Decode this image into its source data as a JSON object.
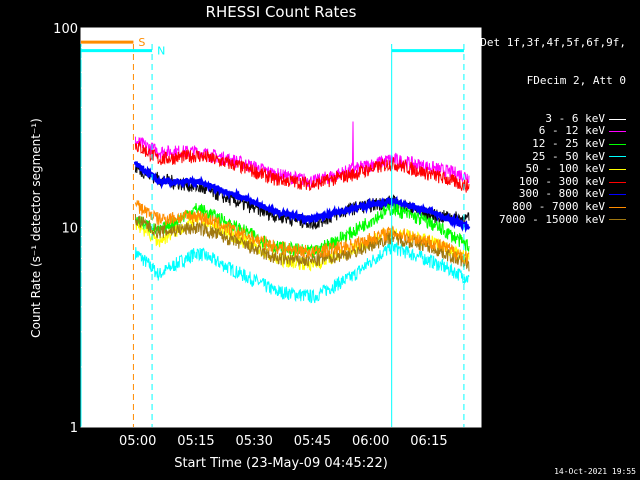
{
  "chart_data": {
    "type": "line",
    "title": "RHESSI Count Rates",
    "xlabel": "Start Time (23-May-09 04:45:22)",
    "ylabel": "Count Rate (s⁻¹ detector segment⁻¹)",
    "yscale": "log",
    "ylim": [
      1,
      100
    ],
    "xlim_minutes": [
      0,
      103
    ],
    "y_ticks": [
      "1",
      "10",
      "100"
    ],
    "x_ticks": [
      {
        "label": "05:00",
        "t": 14.6
      },
      {
        "label": "05:15",
        "t": 29.6
      },
      {
        "label": "05:30",
        "t": 44.6
      },
      {
        "label": "05:45",
        "t": 59.6
      },
      {
        "label": "06:00",
        "t": 74.6
      },
      {
        "label": "06:15",
        "t": 89.6
      }
    ],
    "legend_header": [
      "Det 1f,3f,4f,5f,6f,9f,",
      "FDecim 2, Att 0"
    ],
    "series": [
      {
        "name": "3 - 6 keV",
        "color": "#000000",
        "t": [
          14,
          20,
          30,
          40,
          50,
          60,
          70,
          80,
          90,
          100
        ],
        "values": [
          20,
          17.5,
          16,
          13.5,
          11.5,
          10.5,
          12.5,
          13.5,
          11.5,
          11
        ]
      },
      {
        "name": "6 - 12 keV",
        "color": "#ff00ff",
        "t": [
          14,
          20,
          30,
          40,
          50,
          60,
          70,
          80,
          90,
          100
        ],
        "values": [
          27,
          24,
          24,
          21.5,
          18.5,
          17,
          19.5,
          22,
          20,
          18
        ]
      },
      {
        "name": "12 - 25 keV",
        "color": "#00ff00",
        "t": [
          14,
          20,
          30,
          40,
          50,
          60,
          70,
          80,
          90,
          100
        ],
        "values": [
          11,
          9.5,
          12.5,
          10,
          8,
          7.5,
          9.5,
          12.5,
          10.5,
          8
        ]
      },
      {
        "name": "25 - 50 keV",
        "color": "#00ffff",
        "t": [
          14,
          20,
          30,
          40,
          50,
          60,
          70,
          80,
          90,
          100
        ],
        "values": [
          7.5,
          5.8,
          7.5,
          6,
          4.8,
          4.5,
          5.7,
          8,
          6.8,
          5.5
        ]
      },
      {
        "name": "50 - 100 keV",
        "color": "#ffff00",
        "t": [
          14,
          20,
          30,
          40,
          50,
          60,
          70,
          80,
          90,
          100
        ],
        "values": [
          10.5,
          8.5,
          11,
          9,
          7,
          6.5,
          7.8,
          9.5,
          8.5,
          7
        ]
      },
      {
        "name": "100 - 300 keV",
        "color": "#ff0000",
        "t": [
          14,
          20,
          30,
          40,
          50,
          60,
          70,
          80,
          90,
          100
        ],
        "values": [
          26,
          22,
          23,
          20.5,
          17.5,
          16.5,
          18.5,
          21,
          18.5,
          16
        ]
      },
      {
        "name": "300 - 800 keV",
        "color": "#0000ff",
        "t": [
          14,
          20,
          30,
          40,
          50,
          60,
          70,
          80,
          90,
          100
        ],
        "values": [
          21,
          17,
          17,
          14.5,
          12,
          11,
          12.5,
          13.5,
          12,
          10
        ]
      },
      {
        "name": "800 - 7000 keV",
        "color": "#ff8c00",
        "t": [
          14,
          20,
          30,
          40,
          50,
          60,
          70,
          80,
          90,
          100
        ],
        "values": [
          13,
          11,
          11.5,
          9.5,
          8,
          7.5,
          8.2,
          9.5,
          8.5,
          7
        ]
      },
      {
        "name": "7000 - 15000 keV",
        "color": "#a07810",
        "t": [
          14,
          20,
          30,
          40,
          50,
          60,
          70,
          80,
          90,
          100
        ],
        "values": [
          11,
          9.5,
          10,
          8.5,
          7,
          6.8,
          7.5,
          9,
          8,
          6.5
        ]
      }
    ],
    "annotations": [
      {
        "text": "S",
        "color": "#ff8c00",
        "level": 85,
        "t_start": 0,
        "t_end": 13.5
      },
      {
        "text": "N",
        "color": "#00ffff",
        "level": 77,
        "t_start": 0,
        "t_end": 18.3
      },
      {
        "text": "",
        "color": "#00ffff",
        "level": 77,
        "t_start": 80,
        "t_end": 98.6
      }
    ],
    "vlines": [
      {
        "t": 0,
        "color": "#00ffff",
        "style": "solid"
      },
      {
        "t": 13.5,
        "color": "#ff8c00",
        "style": "dashed"
      },
      {
        "t": 18.3,
        "color": "#00ffff",
        "style": "dashed"
      },
      {
        "t": 80,
        "color": "#00ffff",
        "style": "solid"
      },
      {
        "t": 98.6,
        "color": "#00ffff",
        "style": "dashed"
      }
    ],
    "spike": {
      "series": "6 - 12 keV",
      "t": 70,
      "value": 34
    }
  },
  "footer": {
    "timestamp": "14-Oct-2021 19:55"
  }
}
